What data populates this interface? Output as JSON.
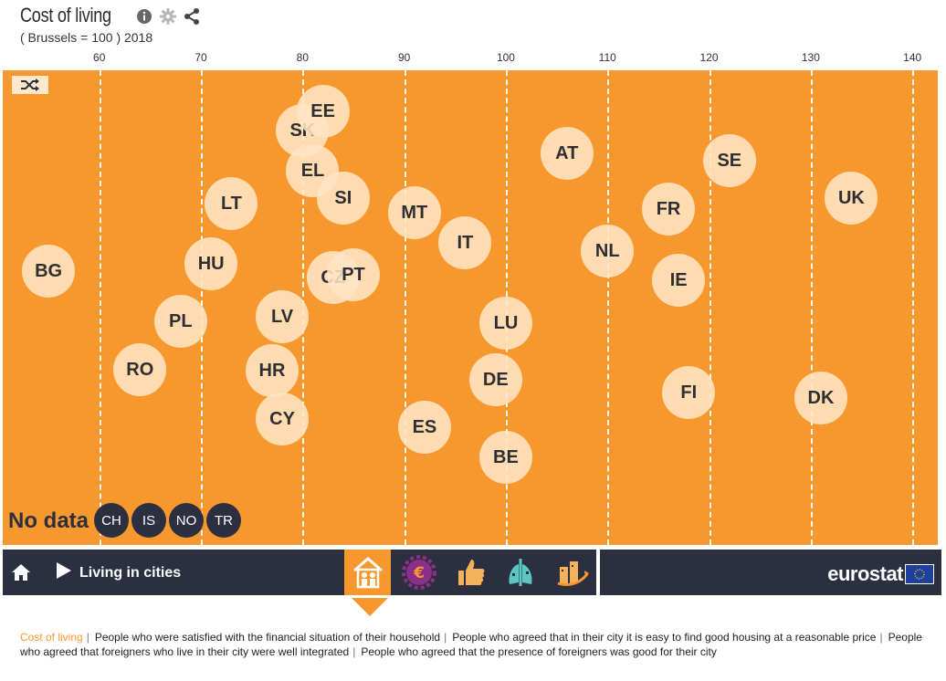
{
  "header": {
    "title": "Cost of living",
    "subtitle": "( Brussels = 100 ) 2018"
  },
  "icons": {
    "info": "info-icon",
    "settings": "gear-icon",
    "share": "share-icon",
    "shuffle": "shuffle-icon",
    "home": "home-icon",
    "play": "play-icon"
  },
  "colors": {
    "plot_bg": "#f7982f",
    "bubble": "#ffe4c4",
    "navbar": "#2b2f3f",
    "accent": "#f7982f"
  },
  "chart_data": {
    "type": "scatter",
    "title": "Cost of living",
    "subtitle": "( Brussels = 100 ) 2018",
    "xlim": [
      50.5,
      142.5
    ],
    "xticks": [
      "60",
      "70",
      "80",
      "90",
      "100",
      "110",
      "120",
      "130",
      "140"
    ],
    "grid": true,
    "series": [
      {
        "values": [
          {
            "label": "BG",
            "x": 55
          },
          {
            "label": "RO",
            "x": 64
          },
          {
            "label": "PL",
            "x": 68
          },
          {
            "label": "HU",
            "x": 71
          },
          {
            "label": "LT",
            "x": 73
          },
          {
            "label": "HR",
            "x": 77
          },
          {
            "label": "LV",
            "x": 78
          },
          {
            "label": "CY",
            "x": 78
          },
          {
            "label": "SK",
            "x": 80
          },
          {
            "label": "EE",
            "x": 82
          },
          {
            "label": "EL",
            "x": 81
          },
          {
            "label": "CZ",
            "x": 83
          },
          {
            "label": "SI",
            "x": 84
          },
          {
            "label": "PT",
            "x": 85
          },
          {
            "label": "MT",
            "x": 91
          },
          {
            "label": "ES",
            "x": 92
          },
          {
            "label": "IT",
            "x": 96
          },
          {
            "label": "DE",
            "x": 99
          },
          {
            "label": "LU",
            "x": 100
          },
          {
            "label": "BE",
            "x": 100
          },
          {
            "label": "AT",
            "x": 106
          },
          {
            "label": "NL",
            "x": 110
          },
          {
            "label": "FR",
            "x": 116
          },
          {
            "label": "IE",
            "x": 117
          },
          {
            "label": "FI",
            "x": 118
          },
          {
            "label": "SE",
            "x": 122
          },
          {
            "label": "DK",
            "x": 131
          },
          {
            "label": "UK",
            "x": 134
          }
        ]
      }
    ]
  },
  "no_data": {
    "label": "No data",
    "countries": [
      "CH",
      "IS",
      "NO",
      "TR"
    ]
  },
  "navbar": {
    "theme_label": "Living in cities",
    "tiles": [
      "household-icon",
      "euro-gear-icon",
      "thumbs-up-icon",
      "city-lung-icon",
      "city-growth-icon"
    ],
    "brand": "eurostat"
  },
  "footer": {
    "links": [
      "Cost of living",
      "People who were satisfied with the financial situation of their household",
      "People who agreed that in their city it is easy to find good housing at a reasonable price",
      "People who agreed that foreigners who live in their city were well integrated",
      "People who agreed that the presence of foreigners was good for their city"
    ]
  }
}
